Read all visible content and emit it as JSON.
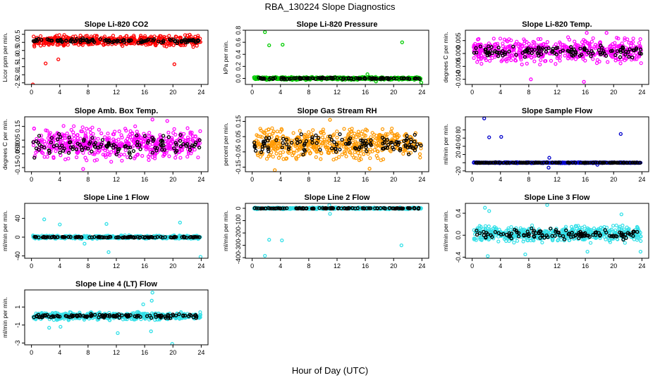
{
  "title": "RBA_130224  Slope Diagnostics",
  "xlabel": "Hour of Day (UTC)",
  "chart_data": [
    {
      "type": "scatter",
      "title": "Slope Li-820 CO2",
      "ylabel": "Licor ppm per min.",
      "xlim": [
        0,
        24
      ],
      "ylim": [
        -2.6,
        0.75
      ],
      "xticks": [
        "0",
        "4",
        "8",
        "12",
        "16",
        "20",
        "24"
      ],
      "yticks": [
        -2.5,
        -2.0,
        -1.5,
        -1.0,
        -0.5,
        0.0,
        0.5
      ],
      "ytick_labels": [
        "-2.5",
        "-2.0",
        "-1.5",
        "-1.0",
        "-0.5",
        "0.0",
        "0.5"
      ],
      "grid": false,
      "series": [
        {
          "color": "#ff0000",
          "band": {
            "center": 0.1,
            "spread": 0.28
          },
          "outliers": [
            [
              0.2,
              -2.6
            ],
            [
              2.0,
              -1.3
            ],
            [
              3.8,
              -1.05
            ],
            [
              20.2,
              -1.35
            ]
          ]
        },
        {
          "color": "#000000",
          "band": {
            "center": 0.1,
            "spread": 0.12
          }
        }
      ]
    },
    {
      "type": "scatter",
      "title": "Slope Li-820 Pressure",
      "ylabel": "kPa per min.",
      "xlim": [
        0,
        24
      ],
      "ylim": [
        -0.1,
        0.8
      ],
      "xticks": [
        "0",
        "4",
        "8",
        "12",
        "16",
        "20",
        "24"
      ],
      "yticks": [
        0.0,
        0.2,
        0.4,
        0.6,
        0.8
      ],
      "ytick_labels": [
        "0.0",
        "0.2",
        "0.4",
        "0.6",
        "0.8"
      ],
      "grid": false,
      "series": [
        {
          "color": "#00cc00",
          "band": {
            "center": 0.0,
            "spread": 0.02
          },
          "outliers": [
            [
              1.8,
              0.77
            ],
            [
              2.4,
              0.55
            ],
            [
              4.3,
              0.56
            ],
            [
              21.2,
              0.6
            ],
            [
              16.3,
              0.07
            ],
            [
              17.5,
              -0.05
            ],
            [
              23.9,
              -0.07
            ]
          ]
        },
        {
          "color": "#000000",
          "band": {
            "center": 0.0,
            "spread": 0.012
          }
        }
      ]
    },
    {
      "type": "scatter",
      "title": "Slope Li-820 Temp.",
      "ylabel": "degrees C per min.",
      "xlim": [
        0,
        24
      ],
      "ylim": [
        -0.012,
        0.009
      ],
      "xticks": [
        "0",
        "4",
        "8",
        "12",
        "16",
        "20",
        "24"
      ],
      "yticks": [
        -0.01,
        -0.005,
        0.0,
        0.005
      ],
      "ytick_labels": [
        "-0.010",
        "-0.005",
        "0.000",
        "0.005"
      ],
      "grid": false,
      "series": [
        {
          "color": "#ff00ff",
          "band": {
            "center": 0.001,
            "spread": 0.004
          },
          "outliers": [
            [
              16.2,
              0.008
            ],
            [
              15.8,
              -0.011
            ],
            [
              19.0,
              0.008
            ],
            [
              8.3,
              -0.01
            ]
          ]
        },
        {
          "color": "#000000",
          "band": {
            "center": 0.001,
            "spread": 0.002
          }
        }
      ]
    },
    {
      "type": "scatter",
      "title": "Slope Amb. Box Temp.",
      "ylabel": "degrees C per min.",
      "xlim": [
        0,
        24
      ],
      "ylim": [
        -0.18,
        0.22
      ],
      "xticks": [
        "0",
        "4",
        "8",
        "12",
        "16",
        "20",
        "24"
      ],
      "yticks": [
        -0.15,
        -0.05,
        0.0,
        0.05,
        0.15
      ],
      "ytick_labels": [
        "-0.15",
        "-0.05",
        "0.00",
        "0.05",
        "0.15"
      ],
      "grid": false,
      "series": [
        {
          "color": "#ff00ff",
          "band": {
            "center": 0.02,
            "spread": 0.1
          },
          "outliers": [
            [
              7.3,
              -0.16
            ],
            [
              17.1,
              0.2
            ],
            [
              19.2,
              0.19
            ]
          ]
        },
        {
          "color": "#000000",
          "band": {
            "center": 0.01,
            "spread": 0.07
          }
        }
      ]
    },
    {
      "type": "scatter",
      "title": "Slope Gas Stream RH",
      "ylabel": "percent per min.",
      "xlim": [
        0,
        24
      ],
      "ylim": [
        -0.18,
        0.18
      ],
      "xticks": [
        "0",
        "4",
        "8",
        "12",
        "16",
        "20",
        "24"
      ],
      "yticks": [
        -0.15,
        -0.05,
        0.05,
        0.15
      ],
      "ytick_labels": [
        "-0.15",
        "-0.05",
        "0.05",
        "0.15"
      ],
      "grid": false,
      "series": [
        {
          "color": "#ff9900",
          "band": {
            "center": 0.0,
            "spread": 0.08
          },
          "outliers": [
            [
              3.2,
              -0.17
            ],
            [
              16.6,
              -0.16
            ],
            [
              11.0,
              0.16
            ]
          ]
        },
        {
          "color": "#000000",
          "band": {
            "center": 0.0,
            "spread": 0.05
          }
        }
      ]
    },
    {
      "type": "scatter",
      "title": "Slope Sample Flow",
      "ylabel": "ml/min per min.",
      "xlim": [
        0,
        24
      ],
      "ylim": [
        -22,
        112
      ],
      "xticks": [
        "0",
        "4",
        "8",
        "12",
        "16",
        "20",
        "24"
      ],
      "yticks": [
        -20,
        0,
        20,
        40,
        60,
        80
      ],
      "ytick_labels": [
        "-20",
        "20",
        "40",
        "60",
        "80"
      ],
      "ytick_label_values": [
        -20,
        20,
        40,
        60,
        80
      ],
      "grid": false,
      "series": [
        {
          "color": "#0000cc",
          "band": {
            "center": 0.0,
            "spread": 1.0
          },
          "outliers": [
            [
              1.7,
              108
            ],
            [
              2.4,
              62
            ],
            [
              4.1,
              63
            ],
            [
              21.0,
              70
            ],
            [
              10.8,
              -12
            ],
            [
              10.9,
              12
            ],
            [
              17.7,
              -5
            ]
          ]
        },
        {
          "color": "#000000",
          "band": {
            "center": 0.0,
            "spread": 0.6
          }
        }
      ]
    },
    {
      "type": "scatter",
      "title": "Slope Line 1 Flow",
      "ylabel": "ml/min per min.",
      "xlim": [
        0,
        24
      ],
      "ylim": [
        -45,
        72
      ],
      "xticks": [
        "0",
        "4",
        "8",
        "12",
        "16",
        "20",
        "24"
      ],
      "yticks": [
        -40,
        0,
        40
      ],
      "ytick_labels": [
        "-40",
        "0",
        "40"
      ],
      "grid": false,
      "series": [
        {
          "color": "#33e0e8",
          "band": {
            "center": 0.0,
            "spread": 3
          },
          "outliers": [
            [
              1.8,
              38
            ],
            [
              4.0,
              27
            ],
            [
              10.6,
              28
            ],
            [
              10.9,
              -32
            ],
            [
              21.0,
              31
            ],
            [
              23.9,
              -42
            ],
            [
              7.5,
              -14
            ]
          ]
        },
        {
          "color": "#000000",
          "band": {
            "center": 0.0,
            "spread": 1
          }
        }
      ]
    },
    {
      "type": "scatter",
      "title": "Slope Line 2 Flow",
      "ylabel": "ml/min per min.",
      "xlim": [
        0,
        24
      ],
      "ylim": [
        -405,
        40
      ],
      "xticks": [
        "0",
        "4",
        "8",
        "12",
        "16",
        "20",
        "24"
      ],
      "yticks": [
        -400,
        -300,
        -200,
        -100,
        0
      ],
      "ytick_labels": [
        "-400",
        "-300",
        "-200",
        "-100",
        "0"
      ],
      "grid": false,
      "series": [
        {
          "color": "#33e0e8",
          "band": {
            "center": 0.0,
            "spread": 6
          },
          "outliers": [
            [
              1.8,
              -385
            ],
            [
              2.4,
              -255
            ],
            [
              4.2,
              -260
            ],
            [
              21.1,
              -300
            ],
            [
              10.9,
              25
            ],
            [
              11.0,
              -45
            ]
          ]
        },
        {
          "color": "#000000",
          "band": {
            "center": 0.0,
            "spread": 3
          }
        }
      ]
    },
    {
      "type": "scatter",
      "title": "Slope Line 3 Flow",
      "ylabel": "ml/min per min.",
      "xlim": [
        0,
        24
      ],
      "ylim": [
        -0.42,
        0.58
      ],
      "xticks": [
        "0",
        "4",
        "8",
        "12",
        "16",
        "20",
        "24"
      ],
      "yticks": [
        -0.4,
        0.0,
        0.4
      ],
      "ytick_labels": [
        "-0.4",
        "0.0",
        "0.4"
      ],
      "grid": false,
      "series": [
        {
          "color": "#33e0e8",
          "band": {
            "center": 0.02,
            "spread": 0.12
          },
          "outliers": [
            [
              1.8,
              0.5
            ],
            [
              2.4,
              0.44
            ],
            [
              10.6,
              0.55
            ],
            [
              21.1,
              0.38
            ],
            [
              2.2,
              -0.38
            ],
            [
              23.8,
              -0.3
            ],
            [
              7.5,
              -0.35
            ],
            [
              16.3,
              -0.3
            ]
          ]
        },
        {
          "color": "#000000",
          "band": {
            "center": 0.02,
            "spread": 0.08
          }
        }
      ]
    },
    {
      "type": "scatter",
      "title": "Slope Line 4 (LT) Flow",
      "ylabel": "ml/min per min.",
      "xlim": [
        0,
        24
      ],
      "ylim": [
        -3.2,
        2.9
      ],
      "xticks": [
        "0",
        "4",
        "8",
        "12",
        "16",
        "20",
        "24"
      ],
      "yticks": [
        -3,
        -1,
        1
      ],
      "ytick_labels": [
        "-3",
        "-1",
        "1"
      ],
      "grid": false,
      "series": [
        {
          "color": "#33e0e8",
          "band": {
            "center": 0.0,
            "spread": 0.35
          },
          "outliers": [
            [
              17.1,
              2.6
            ],
            [
              17.0,
              1.7
            ],
            [
              19.9,
              -3.1
            ],
            [
              12.2,
              -1.9
            ],
            [
              2.5,
              -1.3
            ],
            [
              4.1,
              -1.2
            ],
            [
              15.8,
              1.3
            ],
            [
              16.9,
              -1.7
            ]
          ]
        },
        {
          "color": "#000000",
          "band": {
            "center": 0.0,
            "spread": 0.2
          }
        }
      ]
    }
  ]
}
